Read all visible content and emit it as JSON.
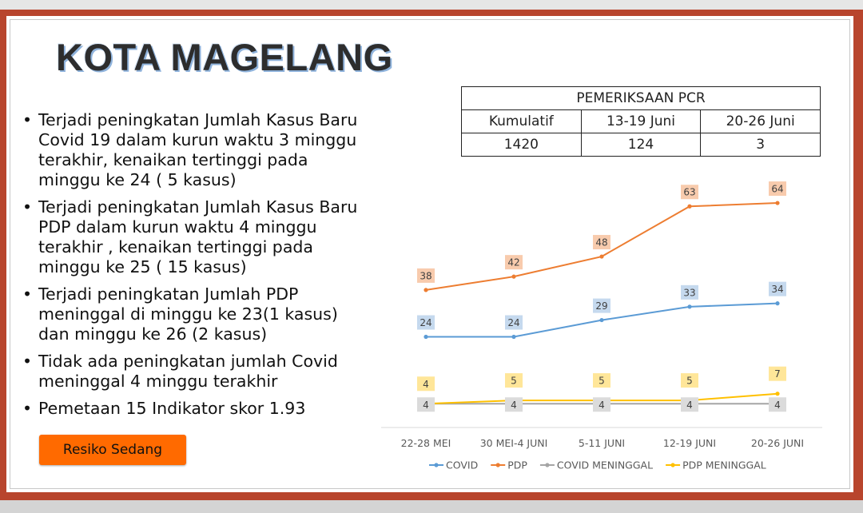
{
  "title": "KOTA MAGELANG",
  "bullets": [
    "Terjadi peningkatan Jumlah Kasus Baru Covid 19 dalam kurun waktu 3 minggu terakhir, kenaikan tertinggi pada minggu ke 24 ( 5 kasus)",
    "Terjadi peningkatan Jumlah Kasus Baru PDP dalam kurun waktu 4 minggu terakhir , kenaikan tertinggi pada minggu ke 25 ( 15 kasus)",
    "Terjadi peningkatan Jumlah PDP meninggal di minggu ke 23(1 kasus) dan minggu ke 26  (2 kasus)",
    "Tidak ada peningkatan jumlah Covid meninggal 4 minggu terakhir",
    "Pemetaan 15 Indikator skor 1.93"
  ],
  "bullet_char": "•",
  "badge": {
    "label": "Resiko Sedang",
    "color": "#ff6a00"
  },
  "pcr_table": {
    "header": "PEMERIKSAAN PCR",
    "columns": [
      "Kumulatif",
      "13-19 Juni",
      "20-26 Juni"
    ],
    "values": [
      "1420",
      "124",
      "3"
    ]
  },
  "chart_data": {
    "type": "line",
    "categories": [
      "22-28 MEI",
      "30 MEI-4 JUNI",
      "5-11 JUNI",
      "12-19 JUNI",
      "20-26 JUNI"
    ],
    "series": [
      {
        "name": "COVID",
        "values": [
          24,
          24,
          29,
          33,
          34
        ],
        "color": "#5b9bd5",
        "label_bg": "#c5d9ee"
      },
      {
        "name": "PDP",
        "values": [
          38,
          42,
          48,
          63,
          64
        ],
        "color": "#ed7d31",
        "label_bg": "#f8cbad"
      },
      {
        "name": "COVID MENINGGAL",
        "values": [
          4,
          4,
          4,
          4,
          4
        ],
        "color": "#a5a5a5",
        "label_bg": "#dbdbdb"
      },
      {
        "name": "PDP MENINGGAL",
        "values": [
          4,
          5,
          5,
          5,
          7
        ],
        "color": "#ffc000",
        "label_bg": "#ffe699"
      }
    ],
    "ylim": [
      0,
      75
    ],
    "legend": "bottom",
    "grid": false,
    "data_labels": true
  }
}
